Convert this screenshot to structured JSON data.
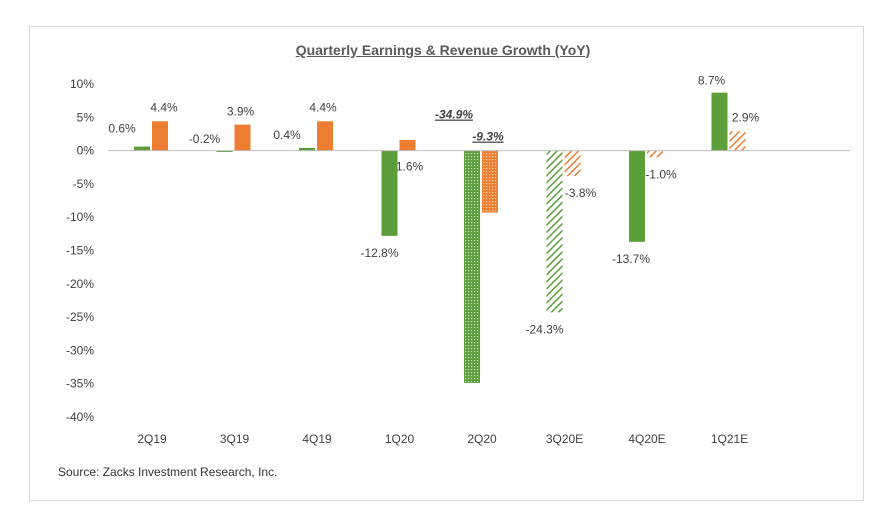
{
  "chart_data": {
    "type": "bar",
    "title": "Quarterly Earnings & Revenue Growth (YoY)",
    "source": "Source: Zacks Investment Research, Inc.",
    "categories": [
      "2Q19",
      "3Q19",
      "4Q19",
      "1Q20",
      "2Q20",
      "3Q20E",
      "4Q20E",
      "1Q21E"
    ],
    "series": [
      {
        "values": [
          0.6,
          -0.2,
          0.4,
          -12.8,
          -34.9,
          -24.3,
          -13.7,
          8.7
        ],
        "color": "#5b9e3a"
      },
      {
        "values": [
          4.4,
          3.9,
          4.4,
          1.6,
          -9.3,
          -3.8,
          -1.0,
          2.9
        ],
        "color": "#ed7d31"
      }
    ],
    "data_labels": [
      [
        "0.6%",
        "-0.2%",
        "0.4%",
        "-12.8%",
        "-34.9%",
        "-24.3%",
        "-13.7%",
        "8.7%"
      ],
      [
        "4.4%",
        "3.9%",
        "4.4%",
        "1.6%",
        "-9.3%",
        "-3.8%",
        "-1.0%",
        "2.9%"
      ]
    ],
    "pattern": [
      [
        "solid",
        "solid",
        "solid",
        "solid",
        "dotted",
        "hatched",
        "solid",
        "solid"
      ],
      [
        "solid",
        "solid",
        "solid",
        "solid",
        "dotted",
        "hatched",
        "hatched",
        "hatched"
      ]
    ],
    "emphasized_labels": [
      "-34.9%",
      "-9.3%"
    ],
    "y_ticks": [
      "10%",
      "5%",
      "0%",
      "-5%",
      "-10%",
      "-15%",
      "-20%",
      "-25%",
      "-30%",
      "-35%",
      "-40%"
    ],
    "ylim": [
      -40,
      10
    ],
    "grid": false,
    "legend": "none"
  }
}
